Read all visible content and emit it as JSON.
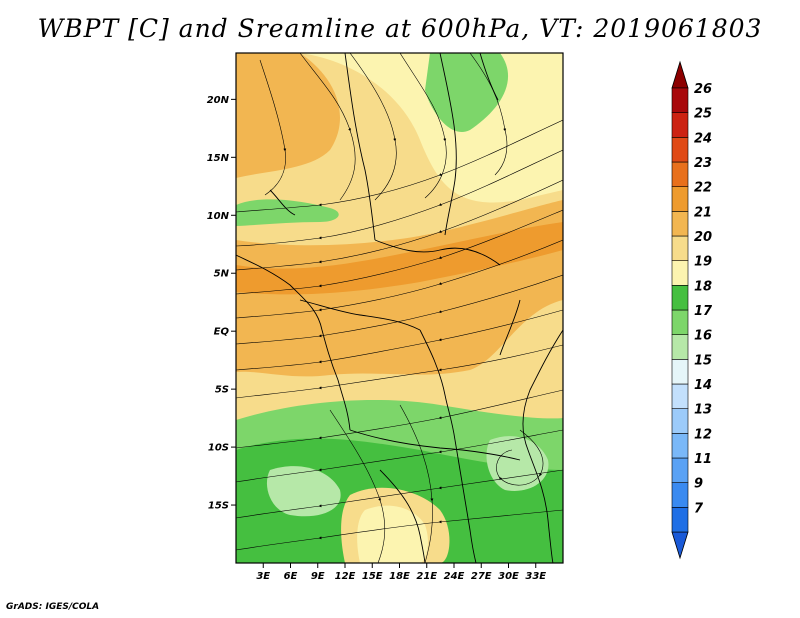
{
  "title": "WBPT [C] and Sreamline at 600hPa, VT: 2019061803",
  "credit": "GrADS: IGES/COLA",
  "map": {
    "lon_range": [
      0,
      36
    ],
    "lat_range": [
      -20,
      24
    ],
    "lat_labels": [
      {
        "lat": 20,
        "text": "20N"
      },
      {
        "lat": 15,
        "text": "15N"
      },
      {
        "lat": 10,
        "text": "10N"
      },
      {
        "lat": 5,
        "text": "5N"
      },
      {
        "lat": 0,
        "text": "EQ"
      },
      {
        "lat": -5,
        "text": "5S"
      },
      {
        "lat": -10,
        "text": "10S"
      },
      {
        "lat": -15,
        "text": "15S"
      }
    ],
    "lon_labels": [
      {
        "lon": 3,
        "text": "3E"
      },
      {
        "lon": 6,
        "text": "6E"
      },
      {
        "lon": 9,
        "text": "9E"
      },
      {
        "lon": 12,
        "text": "12E"
      },
      {
        "lon": 15,
        "text": "15E"
      },
      {
        "lon": 18,
        "text": "18E"
      },
      {
        "lon": 21,
        "text": "21E"
      },
      {
        "lon": 24,
        "text": "24E"
      },
      {
        "lon": 27,
        "text": "27E"
      },
      {
        "lon": 30,
        "text": "30E"
      },
      {
        "lon": 33,
        "text": "33E"
      }
    ]
  },
  "colorbar": {
    "levels": [
      {
        "label": "7",
        "color": "#1f6fe6"
      },
      {
        "label": "9",
        "color": "#3a8af0"
      },
      {
        "label": "11",
        "color": "#5aa2f5"
      },
      {
        "label": "12",
        "color": "#7ab8f8"
      },
      {
        "label": "13",
        "color": "#9ccbfa"
      },
      {
        "label": "14",
        "color": "#c3e0fc"
      },
      {
        "label": "15",
        "color": "#e6f6f9"
      },
      {
        "label": "16",
        "color": "#b6e8a8"
      },
      {
        "label": "17",
        "color": "#7dd66a"
      },
      {
        "label": "18",
        "color": "#45bf40"
      },
      {
        "label": "19",
        "color": "#fcf4b0"
      },
      {
        "label": "20",
        "color": "#f7dc8b"
      },
      {
        "label": "21",
        "color": "#f2b651"
      },
      {
        "label": "22",
        "color": "#ee9b2e"
      },
      {
        "label": "23",
        "color": "#e8701c"
      },
      {
        "label": "24",
        "color": "#e04a16"
      },
      {
        "label": "25",
        "color": "#cc2212"
      },
      {
        "label": "26",
        "color": "#a8080b"
      }
    ],
    "under_color": "#1a5ad8",
    "over_color": "#8c0000"
  }
}
